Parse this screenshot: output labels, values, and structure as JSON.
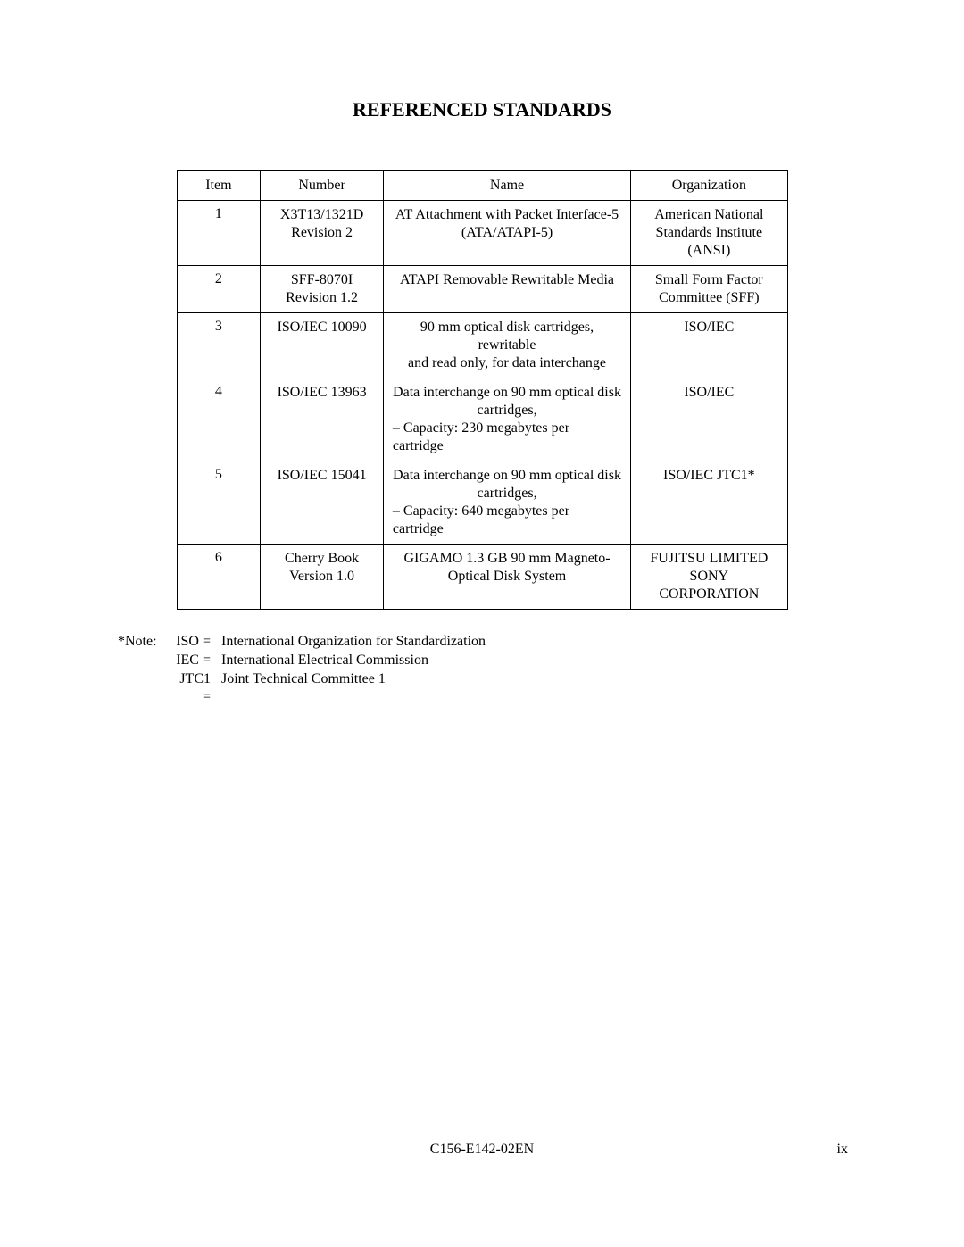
{
  "title": "REFERENCED STANDARDS",
  "table": {
    "headers": {
      "item": "Item",
      "number": "Number",
      "name": "Name",
      "organization": "Organization"
    },
    "rows": [
      {
        "item": "1",
        "number_line1": "X3T13/1321D",
        "number_line2": "Revision 2",
        "name_line1": "AT Attachment with Packet Interface-5",
        "name_line2": "(ATA/ATAPI-5)",
        "org_line1": "American National",
        "org_line2": "Standards Institute",
        "org_line3": "(ANSI)"
      },
      {
        "item": "2",
        "number_line1": "SFF-8070I",
        "number_line2": "Revision 1.2",
        "name_line1": "ATAPI Removable Rewritable Media",
        "org_line1": "Small Form Factor",
        "org_line2": "Committee (SFF)"
      },
      {
        "item": "3",
        "number_line1": "ISO/IEC 10090",
        "name_line1": "90 mm optical disk cartridges, rewritable",
        "name_line2": "and read only, for data interchange",
        "org_line1": "ISO/IEC"
      },
      {
        "item": "4",
        "number_line1": "ISO/IEC 13963",
        "name_line1": "Data interchange on 90 mm optical disk",
        "name_line2": "cartridges,",
        "name_line3": "–  Capacity:  230 megabytes per cartridge",
        "org_line1": "ISO/IEC"
      },
      {
        "item": "5",
        "number_line1": "ISO/IEC 15041",
        "name_line1": "Data interchange on 90 mm optical disk",
        "name_line2": "cartridges,",
        "name_line3": "–  Capacity:  640 megabytes per cartridge",
        "org_line1": "ISO/IEC JTC1*"
      },
      {
        "item": "6",
        "number_line1": "Cherry Book",
        "number_line2": "Version 1.0",
        "name_line1": "GIGAMO 1.3 GB 90 mm Magneto-",
        "name_line2": "Optical Disk System",
        "org_line1": "FUJITSU LIMITED",
        "org_line2": "SONY",
        "org_line3": "CORPORATION"
      }
    ]
  },
  "notes": {
    "prefix": "*Note:",
    "items": [
      {
        "abbrev": "ISO =",
        "definition": "International Organization for Standardization"
      },
      {
        "abbrev": "IEC =",
        "definition": "International Electrical Commission"
      },
      {
        "abbrev": "JTC1 =",
        "definition": "Joint Technical Committee 1"
      }
    ]
  },
  "footer": {
    "docnum": "C156-E142-02EN",
    "pagenum": "ix"
  }
}
